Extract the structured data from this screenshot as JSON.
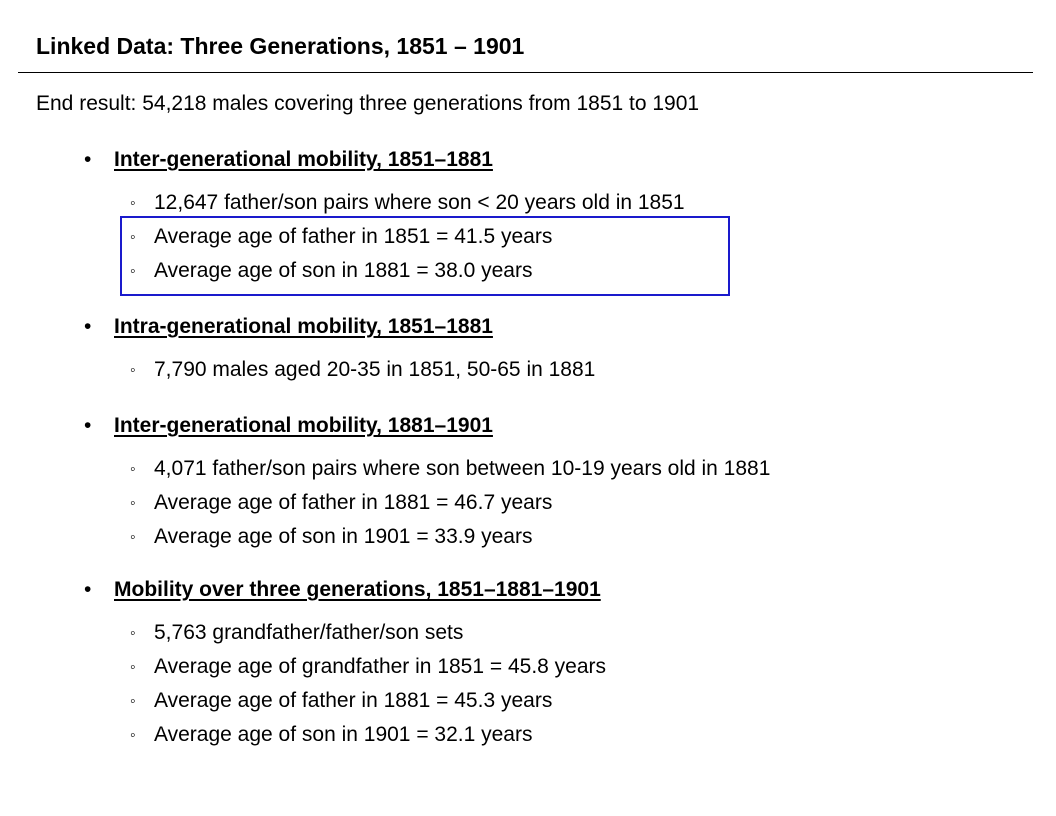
{
  "slide": {
    "title": "Linked Data: Three Generations, 1851 – 1901",
    "intro": "End result: 54,218 males covering three generations from 1851 to 1901",
    "bullet_char": "•",
    "sub_bullet_char": "◦",
    "highlight_color": "#1a1acc",
    "sections": [
      {
        "heading": "Inter-generational mobility, 1851–1881",
        "items": [
          "12,647 father/son pairs where son < 20 years old in 1851",
          "Average age of father in 1851 = 41.5 years",
          "Average age of son in 1881 = 38.0 years"
        ]
      },
      {
        "heading": "Intra-generational mobility, 1851–1881",
        "items": [
          "7,790 males aged 20-35 in 1851, 50-65 in 1881"
        ]
      },
      {
        "heading": "Inter-generational mobility, 1881–1901",
        "items": [
          "4,071 father/son pairs where son between 10-19 years old in 1881",
          "Average age of father in 1881 = 46.7 years",
          "Average age of son in 1901 = 33.9 years"
        ]
      },
      {
        "heading": "Mobility over three generations, 1851–1881–1901",
        "items": [
          "5,763 grandfather/father/son sets",
          "Average age of grandfather in 1851 = 45.8 years",
          "Average age of father in 1881 = 45.3 years",
          "Average age of son in 1901 = 32.1 years"
        ]
      }
    ]
  }
}
